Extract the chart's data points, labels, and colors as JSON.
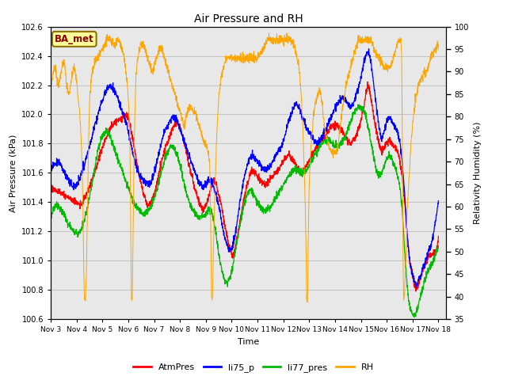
{
  "title": "Air Pressure and RH",
  "xlabel": "Time",
  "ylabel_left": "Air Pressure (kPa)",
  "ylabel_right": "Relativity Humidity (%)",
  "ylim_left": [
    100.6,
    102.6
  ],
  "ylim_right": [
    35,
    100
  ],
  "annotation_text": "BA_met",
  "annotation_color": "#8B0000",
  "annotation_bg": "#FFFF99",
  "annotation_border": "#8B7000",
  "bg_color": "#E8E8E8",
  "line_colors": {
    "AtmPres": "#FF0000",
    "li75_p": "#0000FF",
    "li77_pres": "#00BB00",
    "RH": "#FFA500"
  },
  "x_tick_labels": [
    "Nov 3",
    "Nov 4",
    "Nov 5",
    "Nov 6",
    "Nov 7",
    "Nov 8",
    "Nov 9",
    "Nov 10",
    "Nov 11",
    "Nov 12",
    "Nov 13",
    "Nov 14",
    "Nov 15",
    "Nov 16",
    "Nov 17",
    "Nov 18"
  ],
  "yticks_left": [
    100.6,
    100.8,
    101.0,
    101.2,
    101.4,
    101.6,
    101.8,
    102.0,
    102.2,
    102.4,
    102.6
  ],
  "yticks_right": [
    35,
    40,
    45,
    50,
    55,
    60,
    65,
    70,
    75,
    80,
    85,
    90,
    95,
    100
  ],
  "figsize": [
    6.4,
    4.8
  ],
  "dpi": 100
}
